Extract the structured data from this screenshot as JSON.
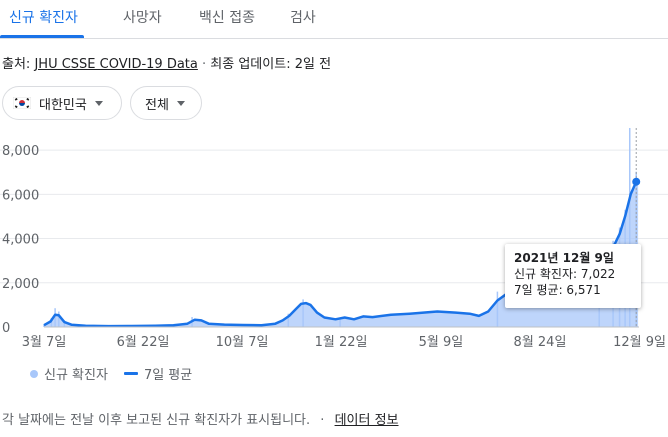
{
  "tabs": [
    "신규 확진자",
    "사망자",
    "백신 접종",
    "검사"
  ],
  "source": {
    "prefix": "출처:",
    "link": "JHU CSSE COVID-19 Data",
    "separator": "·",
    "updated": "최종 업데이트: 2일 전"
  },
  "filters": {
    "country": "대한민국",
    "range": "전체"
  },
  "tooltip": {
    "date": "2021년 12월 9일",
    "cases": "신규 확진자: 7,022",
    "avg": "7일 평균: 6,571"
  },
  "legend": {
    "cases": "신규 확진자",
    "avg": "7일 평균"
  },
  "footer": {
    "text": "각 날짜에는 전날 이후 보고된 신규 확진자가 표시됩니다.",
    "separator": "·",
    "link": "데이터 정보"
  },
  "colors": {
    "accent": "#1a73e8",
    "bars": "#a8c7fa"
  },
  "chart_data": {
    "type": "area",
    "title": "",
    "xlabel": "",
    "ylabel": "",
    "ylim": [
      0,
      9000
    ],
    "yticks": [
      0,
      2000,
      4000,
      6000,
      8000
    ],
    "ytick_labels": [
      "0",
      "2,000",
      "4,000",
      "6,000",
      "8,000"
    ],
    "xtick_labels": [
      "3월 7일",
      "6월 22일",
      "10월 7일",
      "1월 22일",
      "5월 9일",
      "8월 24일",
      "12월 9일"
    ],
    "xtick_positions": [
      0,
      107,
      214,
      321,
      429,
      536,
      643
    ],
    "x_start": "2020-03-07",
    "x_end": "2021-12-09",
    "series": [
      {
        "name": "7일 평균",
        "type": "line",
        "points": [
          [
            0,
            80
          ],
          [
            7,
            250
          ],
          [
            12,
            550
          ],
          [
            16,
            530
          ],
          [
            22,
            220
          ],
          [
            30,
            100
          ],
          [
            45,
            60
          ],
          [
            70,
            40
          ],
          [
            95,
            45
          ],
          [
            120,
            60
          ],
          [
            140,
            80
          ],
          [
            155,
            150
          ],
          [
            163,
            330
          ],
          [
            170,
            300
          ],
          [
            178,
            150
          ],
          [
            195,
            110
          ],
          [
            215,
            90
          ],
          [
            235,
            80
          ],
          [
            250,
            150
          ],
          [
            258,
            300
          ],
          [
            265,
            500
          ],
          [
            272,
            800
          ],
          [
            278,
            1050
          ],
          [
            283,
            1080
          ],
          [
            288,
            1000
          ],
          [
            295,
            650
          ],
          [
            303,
            430
          ],
          [
            315,
            350
          ],
          [
            325,
            430
          ],
          [
            335,
            350
          ],
          [
            345,
            480
          ],
          [
            355,
            450
          ],
          [
            375,
            550
          ],
          [
            395,
            600
          ],
          [
            410,
            650
          ],
          [
            425,
            700
          ],
          [
            445,
            650
          ],
          [
            460,
            600
          ],
          [
            470,
            500
          ],
          [
            480,
            700
          ],
          [
            490,
            1200
          ],
          [
            500,
            1500
          ],
          [
            520,
            1500
          ],
          [
            540,
            1700
          ],
          [
            555,
            1800
          ],
          [
            570,
            1950
          ],
          [
            583,
            2150
          ],
          [
            595,
            2400
          ],
          [
            605,
            2700
          ],
          [
            615,
            3600
          ],
          [
            622,
            4200
          ],
          [
            628,
            5000
          ],
          [
            634,
            6000
          ],
          [
            640,
            6571
          ],
          [
            642,
            6571
          ]
        ]
      },
      {
        "name": "신규 확진자",
        "type": "bar",
        "points": [
          [
            0,
            100
          ],
          [
            8,
            400
          ],
          [
            12,
            850
          ],
          [
            16,
            700
          ],
          [
            22,
            300
          ],
          [
            60,
            60
          ],
          [
            160,
            450
          ],
          [
            264,
            600
          ],
          [
            280,
            1250
          ],
          [
            320,
            400
          ],
          [
            490,
            1600
          ],
          [
            600,
            2600
          ],
          [
            615,
            3900
          ],
          [
            622,
            4500
          ],
          [
            628,
            5300
          ],
          [
            633,
            9200
          ],
          [
            640,
            7022
          ]
        ]
      }
    ],
    "highlight": {
      "x": 640,
      "y": 6571
    }
  }
}
